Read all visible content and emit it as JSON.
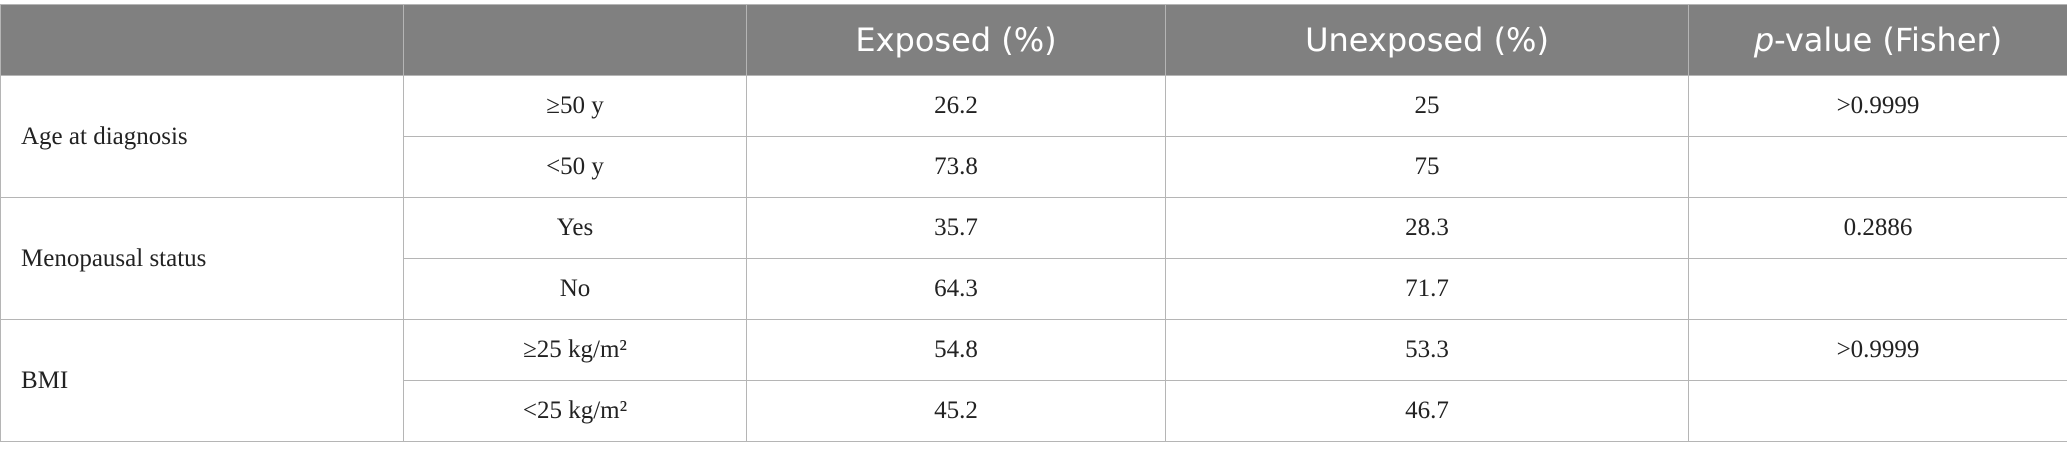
{
  "table": {
    "header": {
      "exposed": "Exposed (%)",
      "unexposed": "Unexposed (%)",
      "p_italic": "p",
      "p_rest": "-value (Fisher)"
    },
    "groups": [
      {
        "label": "Age at diagnosis",
        "rows": [
          {
            "sub": "≥50 y",
            "exposed": "26.2",
            "unexposed": "25",
            "p": ">0.9999"
          },
          {
            "sub": "<50 y",
            "exposed": "73.8",
            "unexposed": "75"
          }
        ]
      },
      {
        "label": "Menopausal status",
        "rows": [
          {
            "sub": "Yes",
            "exposed": "35.7",
            "unexposed": "28.3",
            "p": "0.2886"
          },
          {
            "sub": "No",
            "exposed": "64.3",
            "unexposed": "71.7"
          }
        ]
      },
      {
        "label": "BMI",
        "rows": [
          {
            "sub": "≥25 kg/m²",
            "exposed": "54.8",
            "unexposed": "53.3",
            "p": ">0.9999"
          },
          {
            "sub": "<25 kg/m²",
            "exposed": "45.2",
            "unexposed": "46.7"
          }
        ]
      }
    ]
  }
}
